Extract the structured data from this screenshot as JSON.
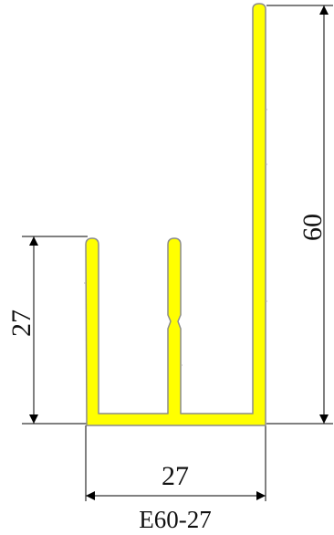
{
  "drawing": {
    "profile_code": "E60-27",
    "profile_fill_color": "#ffff00",
    "profile_stroke_color": "#8c8c8c",
    "line_color": "#000000"
  },
  "dimensions": {
    "height_label": "60",
    "left_height_label": "27",
    "width_label": "27"
  }
}
